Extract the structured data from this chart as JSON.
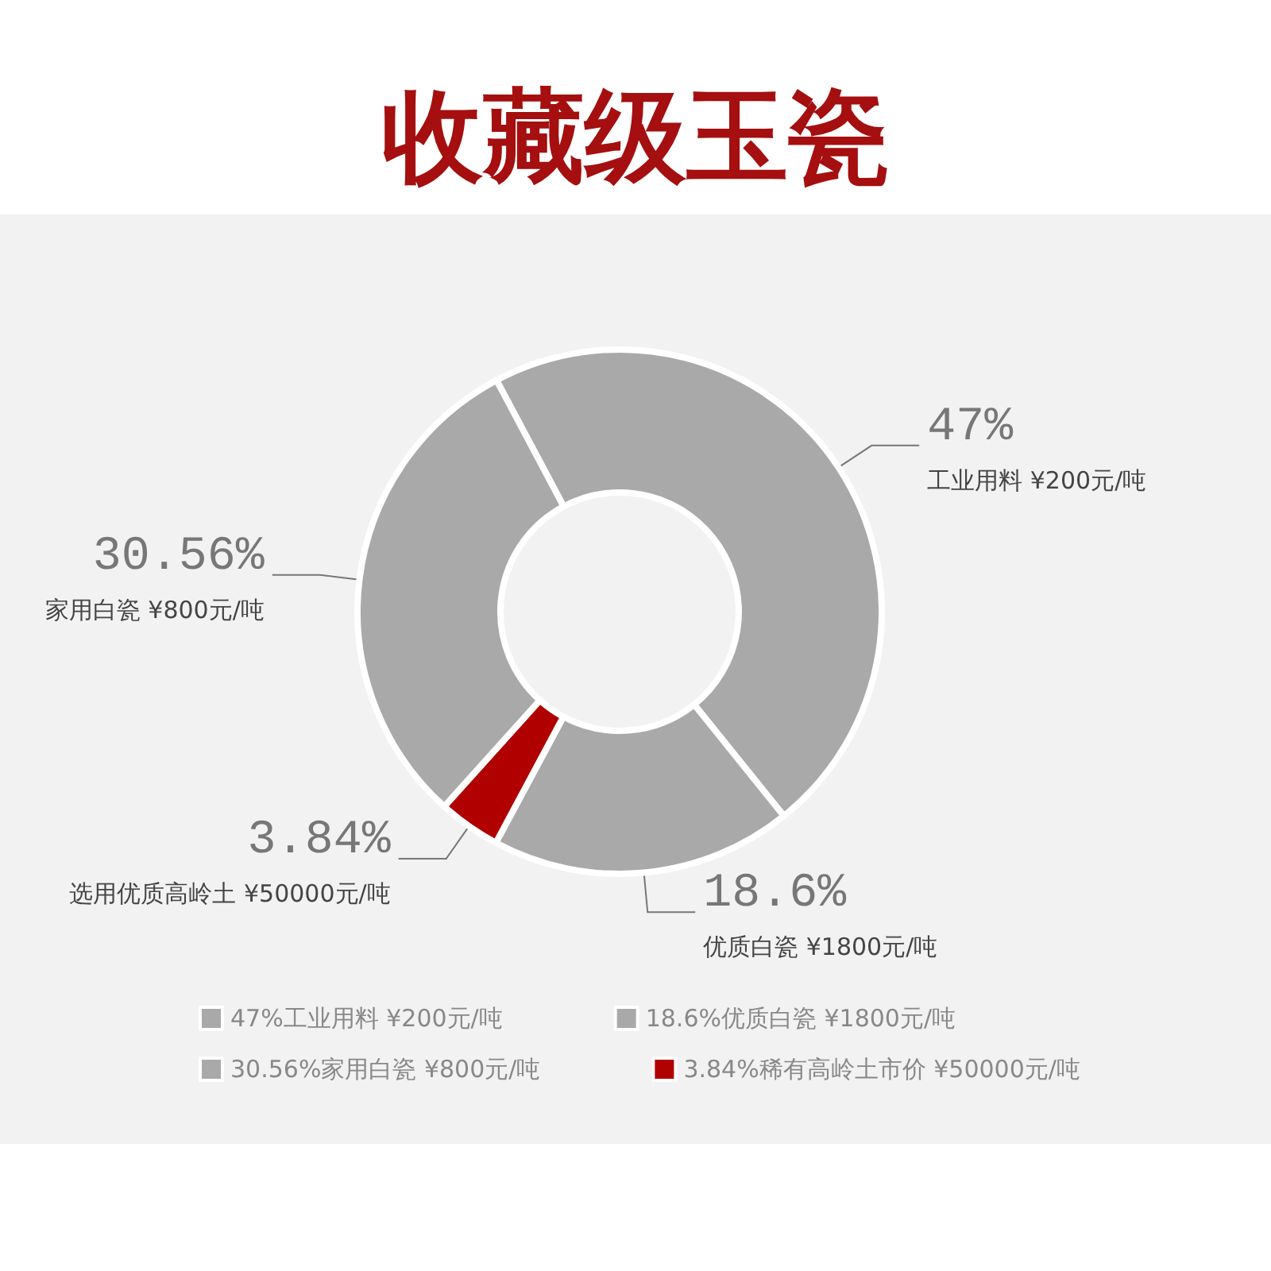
{
  "chart_data": {
    "type": "donut",
    "title": "收藏级玉瓷",
    "categories": [
      "47%工业用料 ¥200元/吨",
      "18.6%优质白瓷 ¥1800元/吨",
      "3.84%稀有高岭土市价 ¥50000元/吨",
      "30.56%家用白瓷 ¥800元/吨"
    ],
    "values": [
      47,
      18.6,
      3.84,
      30.56
    ],
    "colors": [
      "#a9a9a9",
      "#a9a9a9",
      "#b00000",
      "#a9a9a9"
    ],
    "value_labels": [
      "47%",
      "18.6%",
      "3.84%",
      "30.56%"
    ],
    "annotations": [
      {
        "text": "工业用料 ¥200元/吨",
        "x": "47%工业用料 ¥200元/吨"
      },
      {
        "text": "优质白瓷 ¥1800元/吨",
        "x": "18.6%优质白瓷 ¥1800元/吨"
      },
      {
        "text": "选用优质高岭土 ¥50000元/吨",
        "x": "3.84%稀有高岭土市价 ¥50000元/吨"
      },
      {
        "text": "家用白瓷 ¥800元/吨",
        "x": "30.56%家用白瓷 ¥800元/吨"
      }
    ],
    "legend": "bottom"
  }
}
